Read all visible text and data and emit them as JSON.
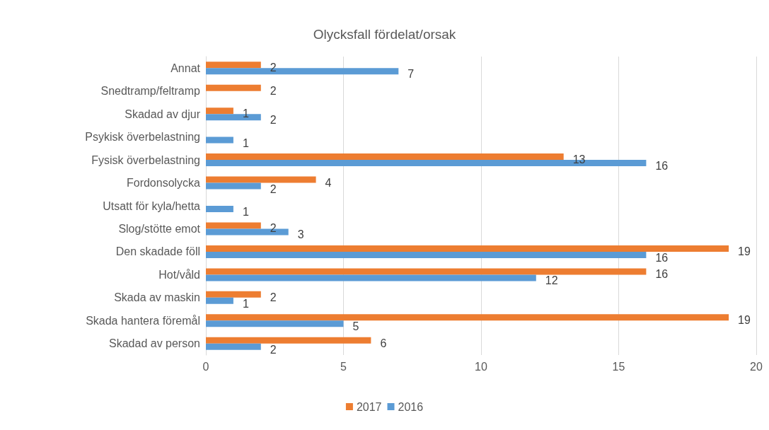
{
  "chart_data": {
    "type": "bar",
    "orientation": "horizontal",
    "title": "Olycksfall fördelat/orsak",
    "categories": [
      "Annat",
      "Snedtramp/feltramp",
      "Skadad av djur",
      "Psykisk överbelastning",
      "Fysisk överbelastning",
      "Fordonsolycka",
      "Utsatt för kyla/hetta",
      "Slog/stötte emot",
      "Den skadade föll",
      "Hot/våld",
      "Skada av maskin",
      "Skada hantera föremål",
      "Skadad av person"
    ],
    "series": [
      {
        "name": "2017",
        "color": "#ed7d31",
        "values": [
          2,
          2,
          1,
          null,
          13,
          4,
          null,
          2,
          19,
          16,
          2,
          19,
          6
        ]
      },
      {
        "name": "2016",
        "color": "#5b9bd5",
        "values": [
          7,
          null,
          2,
          1,
          16,
          2,
          1,
          3,
          16,
          12,
          1,
          5,
          2
        ]
      }
    ],
    "xlim": [
      0,
      20
    ],
    "xticks": [
      0,
      5,
      10,
      15,
      20
    ],
    "grid": "x",
    "legend": "bottom",
    "data_labels": true
  }
}
